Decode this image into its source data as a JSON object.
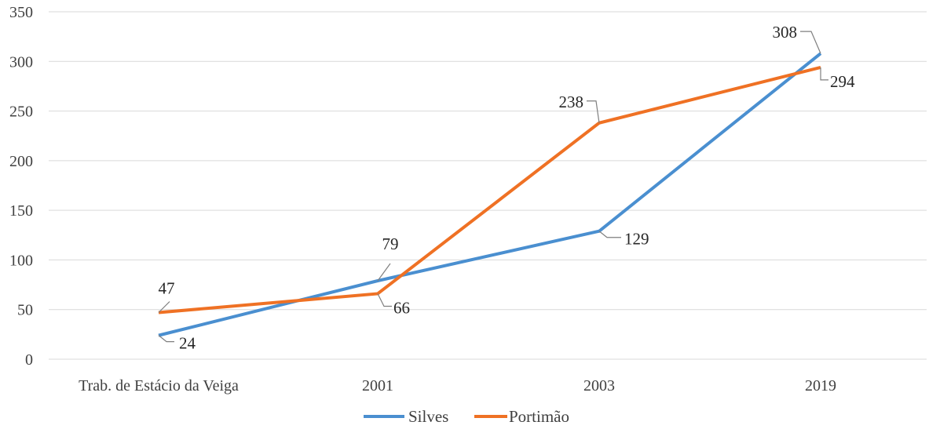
{
  "chart_data": {
    "type": "line",
    "categories": [
      "Trab. de Estácio da Veiga",
      "2001",
      "2003",
      "2019"
    ],
    "ylim": [
      0,
      350
    ],
    "yticks": [
      0,
      50,
      100,
      150,
      200,
      250,
      300,
      350
    ],
    "grid": true,
    "legend_position": "bottom",
    "series": [
      {
        "name": "Silves",
        "color": "#4a8fd0",
        "values": [
          24,
          79,
          129,
          308
        ]
      },
      {
        "name": "Portimão",
        "color": "#ef7124",
        "values": [
          47,
          66,
          238,
          294
        ]
      }
    ]
  }
}
